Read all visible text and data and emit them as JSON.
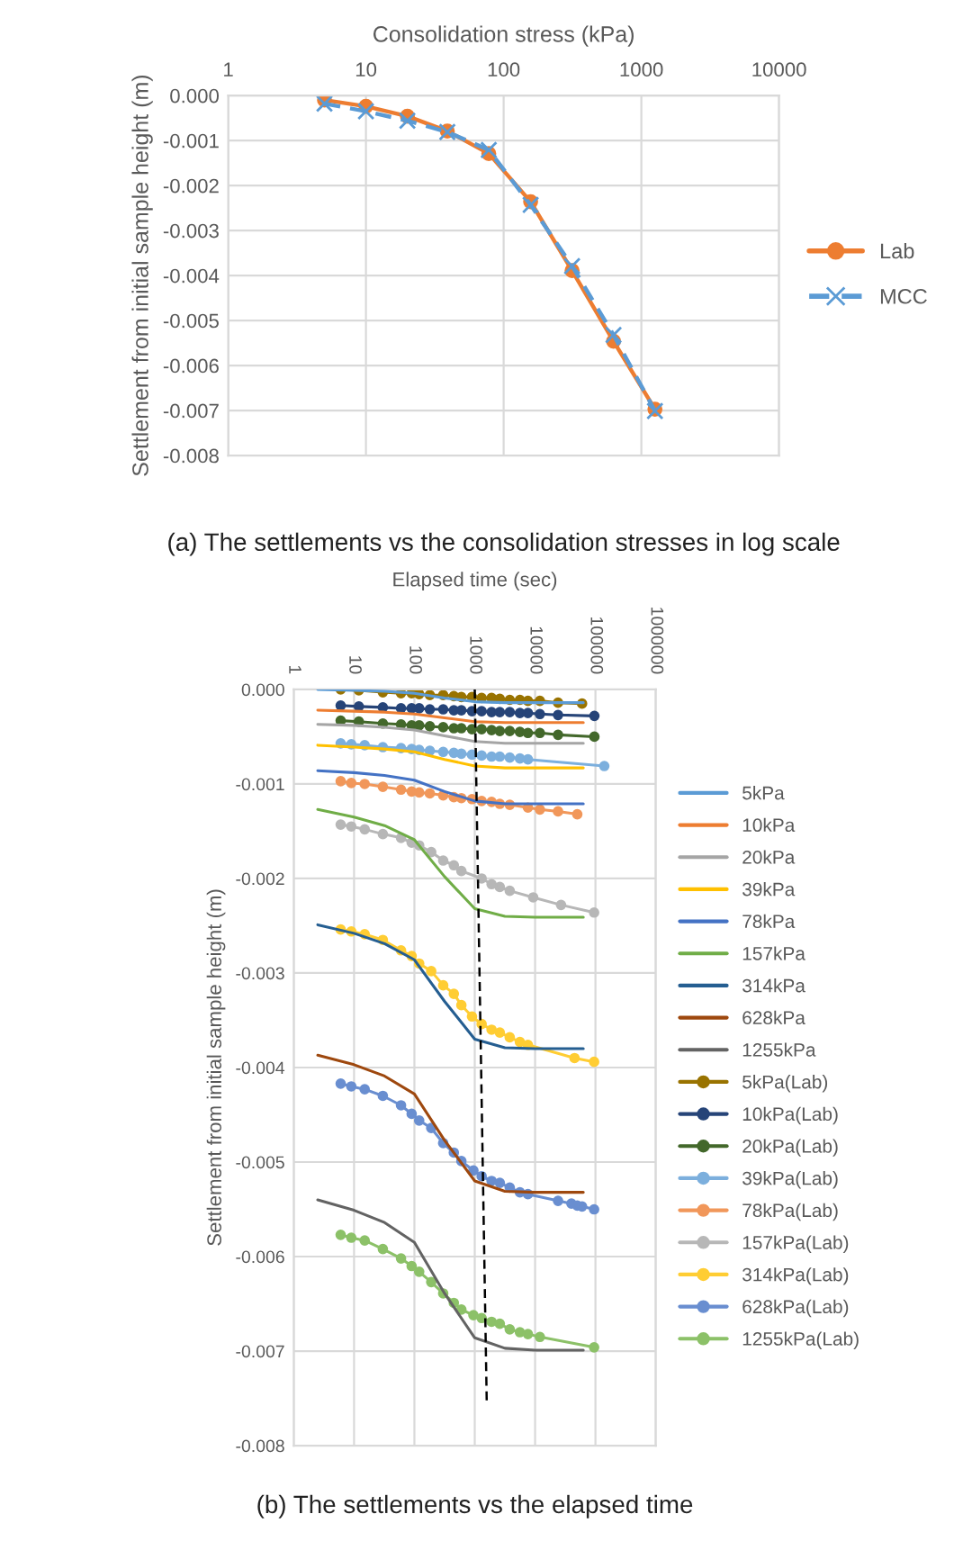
{
  "chart_data": [
    {
      "type": "line",
      "xlabel": "Consolidation stress (kPa)",
      "ylabel": "Settlement from initial sample height (m)",
      "log": "x",
      "grid": true,
      "legend": "right",
      "xlim": [
        1,
        10000
      ],
      "xticks": [
        1,
        10,
        100,
        1000,
        10000
      ],
      "ylim": [
        -0.008,
        0
      ],
      "yticks": [
        {
          "value": 0,
          "label": "0.000"
        },
        -0.001,
        -0.002,
        -0.003,
        -0.004,
        -0.005,
        -0.006,
        -0.007,
        -0.008
      ],
      "annotations": [
        "(a) The settlements vs the consolidation stresses in log scale"
      ],
      "series": [
        {
          "name": "Lab",
          "color": "#ed7d31",
          "marker": "circle",
          "line_style": "solid",
          "x": [
            5,
            10,
            20,
            39,
            78,
            157,
            314,
            628,
            1255
          ],
          "values": [
            -0.0001,
            -0.00024,
            -0.00046,
            -0.00079,
            -0.00129,
            -0.00236,
            -0.00389,
            -0.00546,
            -0.00697
          ]
        },
        {
          "name": "MCC",
          "color": "#5b9bd5",
          "marker": "cross",
          "line_style": "dashed",
          "x": [
            5,
            10,
            20,
            39,
            78,
            157,
            314,
            628,
            1255
          ],
          "values": [
            -0.00018,
            -0.00035,
            -0.00056,
            -0.00081,
            -0.00121,
            -0.00243,
            -0.00379,
            -0.00532,
            -0.00701
          ]
        }
      ]
    },
    {
      "type": "line",
      "xlabel": "Elapsed time (sec)",
      "ylabel": "Settlement from initial sample height (m)",
      "log": "x",
      "grid": true,
      "legend": "right",
      "xlim": [
        1,
        1000000
      ],
      "xticks": [
        1,
        10,
        100,
        1000,
        10000,
        100000,
        1000000
      ],
      "ylim": [
        -0.008,
        0
      ],
      "yticks": [
        {
          "value": 0,
          "label": "0.000"
        },
        -0.001,
        -0.002,
        -0.003,
        -0.004,
        -0.005,
        -0.006,
        -0.007,
        -0.008
      ],
      "annotations": [
        "(b) The settlements vs the elapsed time"
      ],
      "series": [
        {
          "name": "5kPa",
          "color": "#5b9bd5",
          "marker": "none",
          "x": [
            2.5,
            10,
            32,
            100,
            316,
            1000,
            3160,
            10000,
            63000
          ],
          "values": [
            0,
            -1e-05,
            -2e-05,
            -4e-05,
            -9e-05,
            -0.00013,
            -0.00014,
            -0.00014,
            -0.00014
          ]
        },
        {
          "name": "10kPa",
          "color": "#ed7d31",
          "marker": "none",
          "x": [
            2.5,
            10,
            32,
            100,
            316,
            1000,
            3160,
            10000,
            63000
          ],
          "values": [
            -0.00022,
            -0.00023,
            -0.00024,
            -0.00026,
            -0.0003,
            -0.00034,
            -0.00035,
            -0.00035,
            -0.00035
          ]
        },
        {
          "name": "20kPa",
          "color": "#a5a5a5",
          "marker": "none",
          "x": [
            2.5,
            10,
            32,
            100,
            316,
            1000,
            3160,
            10000,
            63000
          ],
          "values": [
            -0.00037,
            -0.00038,
            -0.0004,
            -0.00043,
            -0.00049,
            -0.00055,
            -0.00057,
            -0.00057,
            -0.00057
          ]
        },
        {
          "name": "39kPa",
          "color": "#ffc000",
          "marker": "none",
          "x": [
            2.5,
            10,
            32,
            100,
            316,
            1000,
            3160,
            10000,
            63000
          ],
          "values": [
            -0.00059,
            -0.00061,
            -0.00063,
            -0.00066,
            -0.00074,
            -0.00081,
            -0.00083,
            -0.00083,
            -0.00083
          ]
        },
        {
          "name": "78kPa",
          "color": "#4472c4",
          "marker": "none",
          "x": [
            2.5,
            10,
            32,
            100,
            316,
            1000,
            3160,
            10000,
            63000
          ],
          "values": [
            -0.00086,
            -0.00088,
            -0.00091,
            -0.00096,
            -0.00108,
            -0.00118,
            -0.00121,
            -0.00121,
            -0.00121
          ]
        },
        {
          "name": "157kPa",
          "color": "#70ad47",
          "marker": "none",
          "x": [
            2.5,
            10,
            32,
            100,
            316,
            1000,
            3160,
            10000,
            63000
          ],
          "values": [
            -0.00127,
            -0.00135,
            -0.00144,
            -0.00159,
            -0.00198,
            -0.00232,
            -0.0024,
            -0.00241,
            -0.00241
          ]
        },
        {
          "name": "314kPa",
          "color": "#255e91",
          "marker": "none",
          "x": [
            2.5,
            10,
            32,
            100,
            316,
            1000,
            3160,
            10000,
            63000
          ],
          "values": [
            -0.00249,
            -0.00258,
            -0.00269,
            -0.00286,
            -0.0033,
            -0.0037,
            -0.00379,
            -0.0038,
            -0.0038
          ]
        },
        {
          "name": "628kPa",
          "color": "#9e480e",
          "marker": "none",
          "x": [
            2.5,
            10,
            32,
            100,
            316,
            1000,
            3160,
            10000,
            63000
          ],
          "values": [
            -0.00387,
            -0.00397,
            -0.00409,
            -0.00428,
            -0.00477,
            -0.0052,
            -0.00531,
            -0.00532,
            -0.00532
          ]
        },
        {
          "name": "1255kPa",
          "color": "#636363",
          "marker": "none",
          "x": [
            2.5,
            10,
            32,
            100,
            316,
            1000,
            3160,
            10000,
            63000
          ],
          "values": [
            -0.0054,
            -0.00551,
            -0.00564,
            -0.00585,
            -0.00639,
            -0.00686,
            -0.00697,
            -0.00699,
            -0.00699
          ]
        },
        {
          "name": "5kPa(Lab)",
          "color": "#997300",
          "marker": "circle",
          "x": [
            6,
            12,
            30,
            60,
            90,
            120,
            180,
            300,
            450,
            600,
            900,
            1300,
            1900,
            2600,
            3800,
            5600,
            7600,
            12000,
            24000,
            60000
          ],
          "values": [
            0,
            -1e-05,
            -3e-05,
            -4e-05,
            -4e-05,
            -5e-05,
            -6e-05,
            -6e-05,
            -7e-05,
            -8e-05,
            -8e-05,
            -9e-05,
            -9e-05,
            -0.0001,
            -0.00011,
            -0.00011,
            -0.00012,
            -0.00012,
            -0.00014,
            -0.00015
          ]
        },
        {
          "name": "10kPa(Lab)",
          "color": "#264478",
          "marker": "circle",
          "x": [
            6,
            12,
            30,
            60,
            90,
            120,
            180,
            300,
            450,
            600,
            900,
            1300,
            1900,
            2600,
            3800,
            5600,
            7600,
            12000,
            24000,
            96000
          ],
          "values": [
            -0.00017,
            -0.00018,
            -0.00019,
            -0.0002,
            -0.0002,
            -0.0002,
            -0.00021,
            -0.00021,
            -0.00022,
            -0.00022,
            -0.00023,
            -0.00023,
            -0.00024,
            -0.00024,
            -0.00024,
            -0.00025,
            -0.00025,
            -0.00026,
            -0.00027,
            -0.00028
          ]
        },
        {
          "name": "20kPa(Lab)",
          "color": "#43682b",
          "marker": "circle",
          "x": [
            6,
            12,
            30,
            60,
            90,
            120,
            180,
            300,
            450,
            600,
            900,
            1300,
            1900,
            2600,
            3800,
            5600,
            7600,
            12000,
            24000,
            96000
          ],
          "values": [
            -0.00033,
            -0.00034,
            -0.00036,
            -0.00037,
            -0.00038,
            -0.00038,
            -0.00039,
            -0.0004,
            -0.00041,
            -0.00041,
            -0.00042,
            -0.00042,
            -0.00043,
            -0.00044,
            -0.00044,
            -0.00045,
            -0.00046,
            -0.00046,
            -0.00048,
            -0.0005
          ]
        },
        {
          "name": "39kPa(Lab)",
          "color": "#7cafdd",
          "marker": "circle",
          "x": [
            6,
            9,
            15,
            30,
            60,
            90,
            120,
            180,
            300,
            450,
            600,
            900,
            1300,
            1900,
            2600,
            3800,
            5600,
            7600,
            140000
          ],
          "values": [
            -0.00057,
            -0.00058,
            -0.00059,
            -0.00061,
            -0.00062,
            -0.00063,
            -0.00064,
            -0.00065,
            -0.00066,
            -0.00067,
            -0.00068,
            -0.00069,
            -0.0007,
            -0.00071,
            -0.00071,
            -0.00072,
            -0.00073,
            -0.00074,
            -0.00081
          ]
        },
        {
          "name": "78kPa(Lab)",
          "color": "#f1975a",
          "marker": "circle",
          "x": [
            6,
            9,
            15,
            30,
            60,
            90,
            120,
            180,
            300,
            450,
            600,
            900,
            1300,
            1900,
            2600,
            3800,
            7600,
            12000,
            24000,
            50000
          ],
          "values": [
            -0.00097,
            -0.00099,
            -0.001,
            -0.00103,
            -0.00106,
            -0.00108,
            -0.00109,
            -0.0011,
            -0.00112,
            -0.00114,
            -0.00115,
            -0.00116,
            -0.00118,
            -0.00119,
            -0.00121,
            -0.00122,
            -0.00125,
            -0.00127,
            -0.00129,
            -0.00132
          ]
        },
        {
          "name": "157kPa(Lab)",
          "color": "#b7b7b7",
          "marker": "circle",
          "x": [
            6,
            9,
            15,
            30,
            60,
            90,
            120,
            190,
            300,
            450,
            600,
            1300,
            1900,
            2600,
            3800,
            9300,
            26900,
            95000
          ],
          "values": [
            -0.00143,
            -0.00145,
            -0.00148,
            -0.00153,
            -0.00157,
            -0.00162,
            -0.00165,
            -0.00172,
            -0.00181,
            -0.00186,
            -0.00192,
            -0.002,
            -0.00206,
            -0.00209,
            -0.00213,
            -0.0022,
            -0.00228,
            -0.00236
          ]
        },
        {
          "name": "314kPa(Lab)",
          "color": "#ffcd33",
          "marker": "circle",
          "x": [
            6,
            9,
            15,
            30,
            60,
            90,
            120,
            190,
            300,
            450,
            600,
            900,
            1300,
            1900,
            2600,
            3800,
            5600,
            7600,
            45000,
            95000
          ],
          "values": [
            -0.00254,
            -0.00256,
            -0.00259,
            -0.00265,
            -0.00276,
            -0.00282,
            -0.0029,
            -0.00298,
            -0.00313,
            -0.00322,
            -0.00334,
            -0.00346,
            -0.00354,
            -0.0036,
            -0.00363,
            -0.00368,
            -0.00373,
            -0.00376,
            -0.0039,
            -0.00394
          ]
        },
        {
          "name": "628kPa(Lab)",
          "color": "#698ed0",
          "marker": "circle",
          "x": [
            6,
            9,
            15,
            30,
            60,
            90,
            120,
            190,
            300,
            450,
            600,
            950,
            1300,
            1900,
            2600,
            3800,
            5600,
            7600,
            24000,
            40000,
            50000,
            60000,
            95000
          ],
          "values": [
            -0.00417,
            -0.0042,
            -0.00423,
            -0.0043,
            -0.0044,
            -0.00449,
            -0.00456,
            -0.00464,
            -0.0048,
            -0.0049,
            -0.00499,
            -0.00509,
            -0.00515,
            -0.0052,
            -0.00522,
            -0.00527,
            -0.00532,
            -0.00534,
            -0.00541,
            -0.00544,
            -0.00546,
            -0.00547,
            -0.0055
          ]
        },
        {
          "name": "1255kPa(Lab)",
          "color": "#8cc168",
          "marker": "circle",
          "x": [
            6,
            9,
            15,
            30,
            60,
            90,
            120,
            190,
            300,
            450,
            600,
            950,
            1300,
            1900,
            2600,
            3800,
            5600,
            7600,
            12000,
            95000
          ],
          "values": [
            -0.00577,
            -0.0058,
            -0.00583,
            -0.00592,
            -0.00602,
            -0.0061,
            -0.00616,
            -0.00627,
            -0.00639,
            -0.00649,
            -0.00656,
            -0.00662,
            -0.00665,
            -0.00669,
            -0.00671,
            -0.00677,
            -0.0068,
            -0.00682,
            -0.00685,
            -0.00696
          ]
        },
        {
          "color": "#000000",
          "marker": "none",
          "line_style": "dashed",
          "x": [
            1000,
            1580
          ],
          "values": [
            0,
            -0.00755
          ]
        }
      ]
    }
  ]
}
